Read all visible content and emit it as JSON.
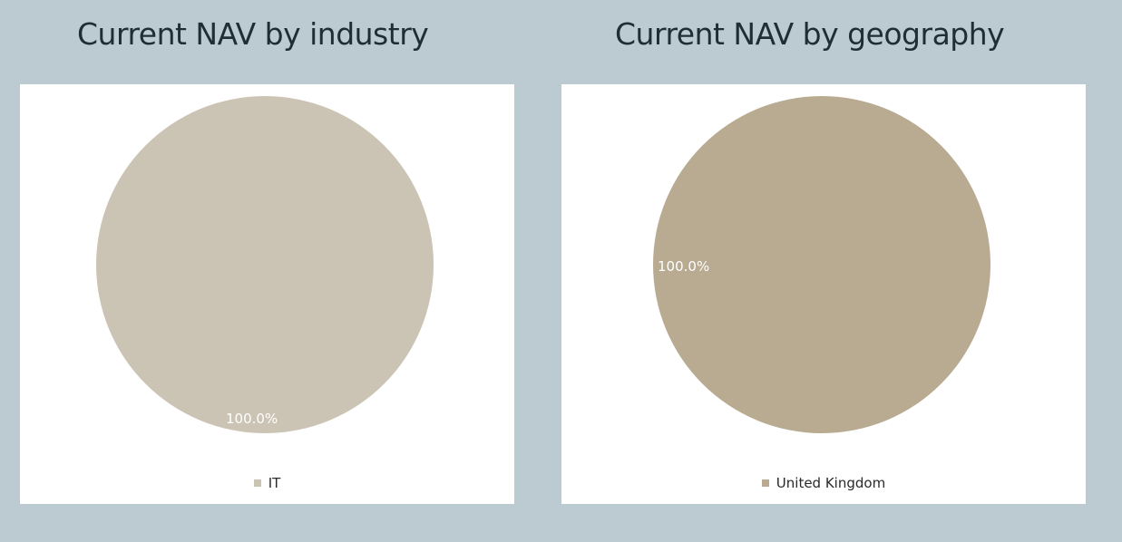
{
  "chart_data": [
    {
      "type": "pie",
      "title": "Current NAV by industry",
      "slices": [
        {
          "label": "IT",
          "value": 100.0,
          "display": "100.0%",
          "color": "#cbc4b4"
        }
      ],
      "legend_position": "bottom"
    },
    {
      "type": "pie",
      "title": "Current NAV by geography",
      "slices": [
        {
          "label": "United Kingdom",
          "value": 100.0,
          "display": "100.0%",
          "color": "#b8ab92"
        }
      ],
      "legend_position": "bottom"
    }
  ],
  "colors": {
    "background": "#bccbd2",
    "panel": "#ffffff",
    "title_text": "#1f2e36",
    "data_label": "#ffffff"
  }
}
